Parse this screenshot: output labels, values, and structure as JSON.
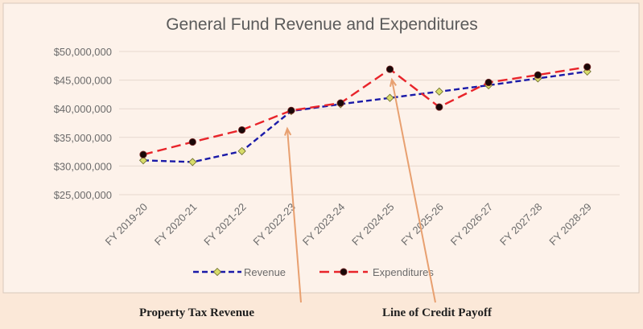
{
  "chart_data": {
    "type": "line",
    "title": "General Fund Revenue and Expenditures",
    "xlabel": "",
    "ylabel": "",
    "categories": [
      "FY 2019-20",
      "FY 2020-21",
      "FY 2021-22",
      "FY 2022-23",
      "FY 2023-24",
      "FY 2024-25",
      "FY 2025-26",
      "FY 2026-27",
      "FY 2027-28",
      "FY 2028-29"
    ],
    "y_ticks": [
      "$25,000,000",
      "$30,000,000",
      "$35,000,000",
      "$40,000,000",
      "$45,000,000",
      "$50,000,000"
    ],
    "ylim": [
      25000000,
      50000000
    ],
    "grid": true,
    "legend_position": "bottom",
    "series": [
      {
        "name": "Revenue",
        "color": "#1a1aa8",
        "marker_color": "#d8dc6a",
        "values": [
          31000000,
          30700000,
          32600000,
          39600000,
          40800000,
          41900000,
          43000000,
          44100000,
          45300000,
          46500000
        ]
      },
      {
        "name": "Expenditures",
        "color": "#e8242a",
        "marker_color": "#1a0808",
        "values": [
          32000000,
          34200000,
          36300000,
          39700000,
          41000000,
          46900000,
          40300000,
          44600000,
          45900000,
          47300000
        ]
      }
    ],
    "annotations": [
      {
        "text": "Property Tax Revenue",
        "category": "FY 2022-23"
      },
      {
        "text": "Line of Credit Payoff",
        "category": "FY 2024-25"
      }
    ]
  }
}
